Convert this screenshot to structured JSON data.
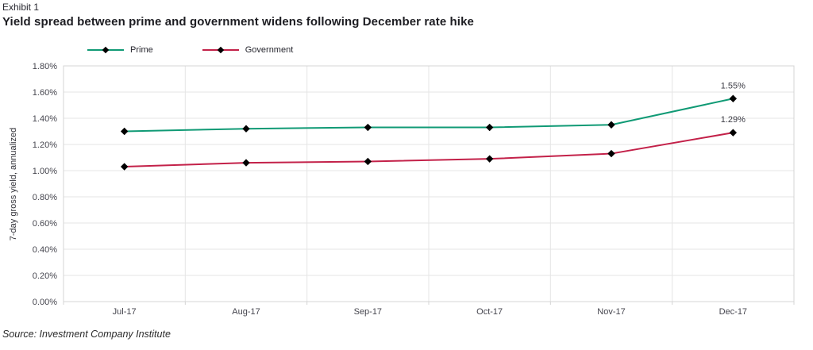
{
  "header": {
    "exhibit_label": "Exhibit 1",
    "title": "Yield spread between prime and government widens following December rate hike"
  },
  "source_note": "Source: Investment Company Institute",
  "colors": {
    "gridline": "#e5e5e5",
    "plot_border": "#d4d4d4",
    "tick_text": "#45454e",
    "annotation_text": "#3b3b44",
    "marker": "#000000"
  },
  "chart_data": {
    "type": "line",
    "title": "Yield spread between prime and government widens following December rate hike",
    "xlabel": "",
    "ylabel": "7-day gross yield, annualized",
    "categories": [
      "Jul-17",
      "Aug-17",
      "Sep-17",
      "Oct-17",
      "Nov-17",
      "Dec-17"
    ],
    "series": [
      {
        "name": "Prime",
        "color": "#109a75",
        "values": [
          1.3,
          1.32,
          1.33,
          1.33,
          1.35,
          1.55
        ]
      },
      {
        "name": "Government",
        "color": "#c32149",
        "values": [
          1.03,
          1.06,
          1.07,
          1.09,
          1.13,
          1.29
        ]
      }
    ],
    "ylim": [
      0,
      1.8
    ],
    "yticks": [
      {
        "value": 1.8,
        "label": "1.80%"
      },
      {
        "value": 1.6,
        "label": "1.60%"
      },
      {
        "value": 1.4,
        "label": "1.40%"
      },
      {
        "value": 1.2,
        "label": "1.20%"
      },
      {
        "value": 1.0,
        "label": "1.00%"
      },
      {
        "value": 0.8,
        "label": "0.80%"
      },
      {
        "value": 0.6,
        "label": "0.60%"
      },
      {
        "value": 0.4,
        "label": "0.40%"
      },
      {
        "value": 0.2,
        "label": "0.20%"
      },
      {
        "value": 0.0,
        "label": "0.00%"
      }
    ],
    "grid": true,
    "legend_position": "top-left",
    "marker": "diamond",
    "annotations": [
      {
        "text": "1.55%",
        "series": 0,
        "index": 5
      },
      {
        "text": "1.29%",
        "series": 1,
        "index": 5
      }
    ]
  }
}
